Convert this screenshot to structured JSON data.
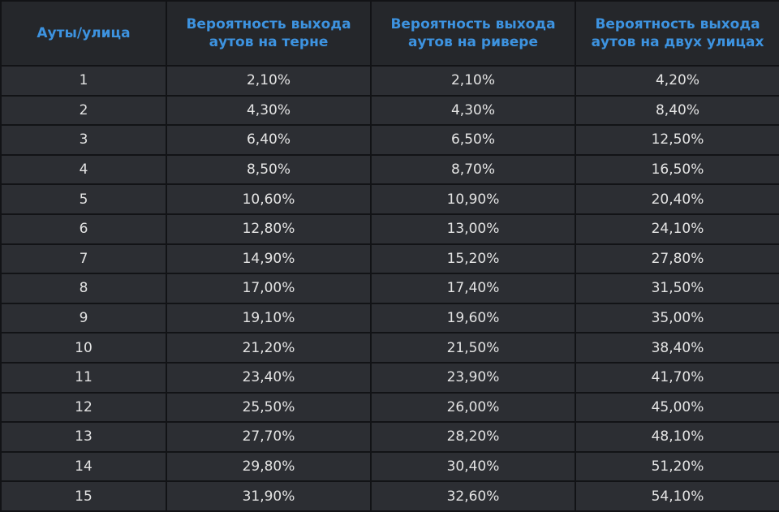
{
  "table": {
    "header": [
      "Ауты/улица",
      "Вероятность выхода\nаутов на терне",
      "Вероятность выхода\nаутов на ривере",
      "Вероятность выхода\nаутов на двух улицах"
    ],
    "rows": [
      [
        "1",
        "2,10%",
        "2,10%",
        "4,20%"
      ],
      [
        "2",
        "4,30%",
        "4,30%",
        "8,40%"
      ],
      [
        "3",
        "6,40%",
        "6,50%",
        "12,50%"
      ],
      [
        "4",
        "8,50%",
        "8,70%",
        "16,50%"
      ],
      [
        "5",
        "10,60%",
        "10,90%",
        "20,40%"
      ],
      [
        "6",
        "12,80%",
        "13,00%",
        "24,10%"
      ],
      [
        "7",
        "14,90%",
        "15,20%",
        "27,80%"
      ],
      [
        "8",
        "17,00%",
        "17,40%",
        "31,50%"
      ],
      [
        "9",
        "19,10%",
        "19,60%",
        "35,00%"
      ],
      [
        "10",
        "21,20%",
        "21,50%",
        "38,40%"
      ],
      [
        "11",
        "23,40%",
        "23,90%",
        "41,70%"
      ],
      [
        "12",
        "25,50%",
        "26,00%",
        "45,00%"
      ],
      [
        "13",
        "27,70%",
        "28,20%",
        "48,10%"
      ],
      [
        "14",
        "29,80%",
        "30,40%",
        "51,20%"
      ],
      [
        "15",
        "31,90%",
        "32,60%",
        "54,10%"
      ]
    ]
  }
}
